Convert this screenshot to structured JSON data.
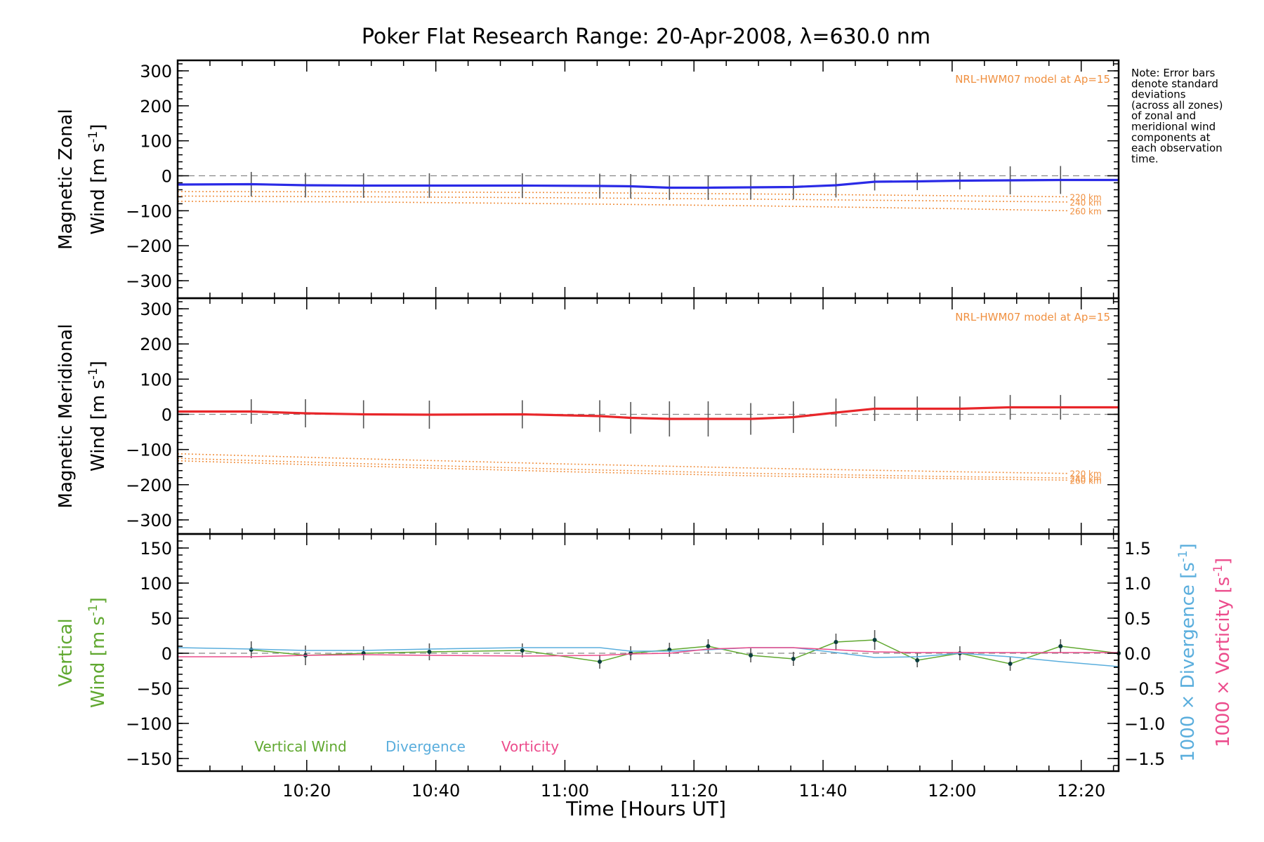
{
  "chart_data": {
    "title": "Poker Flat Research Range: 20-Apr-2008, λ=630.0 nm",
    "xlabel": "Time [Hours UT]",
    "xlim": [
      10.0,
      12.43
    ],
    "x_ticks": [
      10.3333,
      10.6667,
      11.0,
      11.3333,
      11.6667,
      12.0,
      12.3333
    ],
    "x_tick_labels": [
      "10:20",
      "10:40",
      "11:00",
      "11:20",
      "11:40",
      "12:00",
      "12:20"
    ],
    "note": [
      "Note: Error bars",
      "denote standard",
      "deviations",
      "(across all zones)",
      "of zonal and",
      "meridional wind",
      "components at",
      "each observation",
      "time."
    ],
    "panels": [
      {
        "type": "line",
        "ylabel_line1": "Magnetic Zonal",
        "ylabel_line2": "Wind [m s",
        "ylabel_sup": "-1",
        "ylabel_close": "]",
        "ylim": [
          -350,
          330
        ],
        "yticks": [
          300,
          200,
          100,
          0,
          -100,
          -200,
          -300
        ],
        "ytick_labels": [
          "300",
          "200",
          "100",
          "0",
          "−100",
          "−200",
          "−300"
        ],
        "model_label": "NRL-HWM07 model at Ap=15",
        "model_series": [
          {
            "name": "220 km",
            "x": [
              10.0,
              10.5,
              11.0,
              11.5,
              12.0,
              12.3
            ],
            "values": [
              -45,
              -46,
              -48,
              -52,
              -57,
              -60
            ]
          },
          {
            "name": "240 km",
            "x": [
              10.0,
              10.5,
              11.0,
              11.5,
              12.0,
              12.3
            ],
            "values": [
              -58,
              -60,
              -63,
              -67,
              -72,
              -75
            ]
          },
          {
            "name": "260 km",
            "x": [
              10.0,
              10.5,
              11.0,
              11.5,
              12.0,
              12.3
            ],
            "values": [
              -73,
              -75,
              -80,
              -86,
              -94,
              -100
            ]
          }
        ],
        "series": [
          {
            "name": "Zonal wind",
            "x": [
              10.0,
              10.19,
              10.33,
              10.48,
              10.65,
              10.89,
              11.09,
              11.17,
              11.27,
              11.37,
              11.48,
              11.59,
              11.7,
              11.8,
              11.91,
              12.02,
              12.15,
              12.28,
              12.43
            ],
            "values": [
              -25,
              -24,
              -27,
              -28,
              -28,
              -28,
              -29,
              -30,
              -34,
              -34,
              -33,
              -32,
              -27,
              -17,
              -16,
              -14,
              -13,
              -12,
              -12
            ],
            "error": [
              35,
              35,
              35,
              35,
              35,
              35,
              35,
              35,
              35,
              35,
              35,
              35,
              35,
              25,
              25,
              25,
              40,
              40,
              40
            ]
          }
        ]
      },
      {
        "type": "line",
        "ylabel_line1": "Magnetic Meridional",
        "ylabel_line2": "Wind [m s",
        "ylabel_sup": "-1",
        "ylabel_close": "]",
        "ylim": [
          -340,
          330
        ],
        "yticks": [
          300,
          200,
          100,
          0,
          -100,
          -200,
          -300
        ],
        "ytick_labels": [
          "300",
          "200",
          "100",
          "0",
          "−100",
          "−200",
          "−300"
        ],
        "model_label": "NRL-HWM07 model at Ap=15",
        "model_series": [
          {
            "name": "220 km",
            "x": [
              10.0,
              10.5,
              11.0,
              11.5,
              12.0,
              12.3
            ],
            "values": [
              -112,
              -127,
              -141,
              -153,
              -163,
              -168
            ]
          },
          {
            "name": "240 km",
            "x": [
              10.0,
              10.5,
              11.0,
              11.5,
              12.0,
              12.3
            ],
            "values": [
              -125,
              -141,
              -156,
              -168,
              -177,
              -181
            ]
          },
          {
            "name": "260 km",
            "x": [
              10.0,
              10.5,
              11.0,
              11.5,
              12.0,
              12.3
            ],
            "values": [
              -132,
              -148,
              -163,
              -175,
              -183,
              -187
            ]
          }
        ],
        "series": [
          {
            "name": "Meridional wind",
            "x": [
              10.0,
              10.19,
              10.33,
              10.48,
              10.65,
              10.89,
              11.09,
              11.17,
              11.27,
              11.37,
              11.48,
              11.59,
              11.7,
              11.8,
              11.91,
              12.02,
              12.15,
              12.28,
              12.43
            ],
            "values": [
              8,
              8,
              3,
              0,
              -1,
              0,
              -5,
              -10,
              -13,
              -13,
              -13,
              -8,
              5,
              16,
              16,
              16,
              20,
              20,
              20
            ],
            "error": [
              40,
              35,
              40,
              40,
              40,
              40,
              45,
              45,
              50,
              50,
              45,
              45,
              40,
              35,
              35,
              35,
              35,
              35,
              40
            ]
          }
        ]
      },
      {
        "type": "line",
        "ylabel_line1": "Vertical",
        "ylabel_line2": "Wind [m s",
        "ylabel_sup": "-1",
        "ylabel_close": "]",
        "ylim": [
          -168,
          170
        ],
        "yticks": [
          150,
          100,
          50,
          0,
          -50,
          -100,
          -150
        ],
        "ytick_labels": [
          "150",
          "100",
          "50",
          "0",
          "−50",
          "−100",
          "−150"
        ],
        "y2lim": [
          -1.68,
          1.7
        ],
        "y2ticks": [
          1.5,
          1.0,
          0.5,
          0.0,
          -0.5,
          -1.0,
          -1.5
        ],
        "y2tick_labels": [
          "1.5",
          "1.0",
          "0.5",
          "0.0",
          "−0.5",
          "−1.0",
          "−1.5"
        ],
        "y2label_div": "1000 × Divergence [s",
        "y2label_vor": "1000 × Vorticity [s",
        "y2label_sup": "-1",
        "y2label_close": "]",
        "legend": [
          "Vertical Wind",
          "Divergence",
          "Vorticity"
        ],
        "colors": {
          "vertical": "#60a830",
          "divergence": "#5aaedd",
          "vorticity": "#ec4c8c"
        },
        "series": [
          {
            "name": "Vertical Wind",
            "axis": "left",
            "x": [
              10.19,
              10.33,
              10.48,
              10.65,
              10.89,
              11.09,
              11.17,
              11.27,
              11.37,
              11.48,
              11.59,
              11.7,
              11.8,
              11.91,
              12.02,
              12.15,
              12.28,
              12.43
            ],
            "values": [
              5,
              -3,
              0,
              2,
              4,
              -12,
              0,
              5,
              10,
              -3,
              -8,
              16,
              19,
              -10,
              0,
              -15,
              10,
              0
            ],
            "error": [
              12,
              14,
              10,
              12,
              10,
              10,
              10,
              10,
              10,
              10,
              10,
              12,
              14,
              10,
              10,
              10,
              10,
              10
            ]
          },
          {
            "name": "Divergence",
            "axis": "right",
            "x": [
              10.0,
              10.19,
              10.33,
              10.48,
              10.65,
              10.89,
              11.09,
              11.17,
              11.27,
              11.37,
              11.48,
              11.59,
              11.7,
              11.8,
              11.91,
              12.02,
              12.15,
              12.28,
              12.43
            ],
            "values": [
              0.08,
              0.06,
              0.04,
              0.04,
              0.06,
              0.08,
              0.08,
              0.03,
              0.03,
              0.05,
              0.08,
              0.08,
              0.01,
              -0.06,
              -0.05,
              0.0,
              -0.05,
              -0.12,
              -0.19
            ]
          },
          {
            "name": "Vorticity",
            "axis": "right",
            "x": [
              10.0,
              10.19,
              10.33,
              10.48,
              10.65,
              10.89,
              11.09,
              11.17,
              11.27,
              11.37,
              11.48,
              11.59,
              11.7,
              11.8,
              11.91,
              12.02,
              12.15,
              12.28,
              12.43
            ],
            "values": [
              -0.05,
              -0.05,
              -0.03,
              -0.02,
              -0.03,
              -0.04,
              -0.03,
              -0.01,
              0.0,
              0.06,
              0.08,
              0.08,
              0.05,
              0.02,
              0.01,
              0.01,
              0.01,
              0.01,
              0.01
            ]
          }
        ]
      }
    ],
    "colors": {
      "zonal": "#2a2ae6",
      "meridional": "#e8262a",
      "model": "#f09040",
      "errorbar": "#555555"
    }
  }
}
